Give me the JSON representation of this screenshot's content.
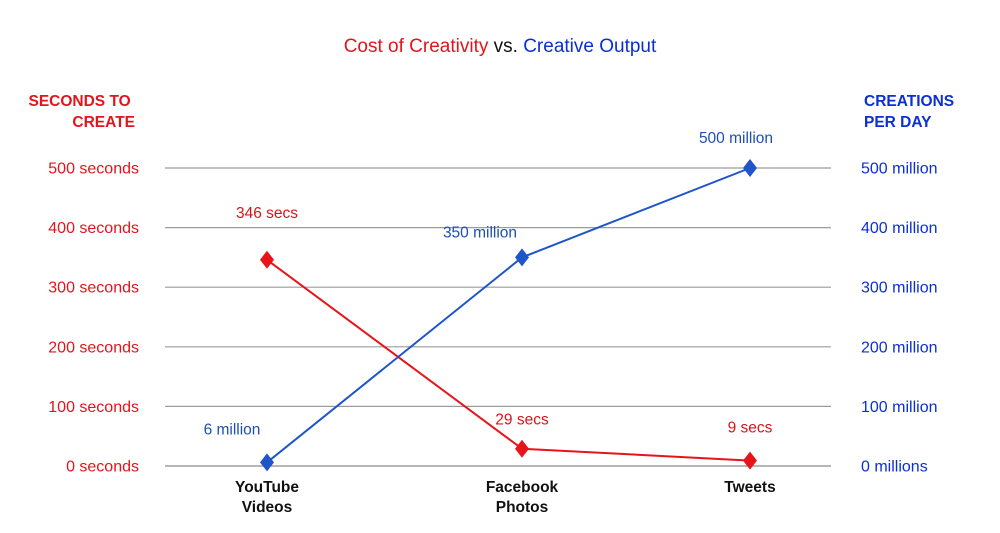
{
  "chart_data": {
    "type": "line",
    "title_parts": [
      {
        "text": "Cost of Creativity",
        "color": "#e3141b"
      },
      {
        "text": " vs. ",
        "color": "#111111"
      },
      {
        "text": "Creative Output",
        "color": "#0b2fd6"
      }
    ],
    "categories": [
      "YouTube Videos",
      "Facebook Photos",
      "Tweets"
    ],
    "category_lines": [
      [
        "YouTube",
        "Videos"
      ],
      [
        "Facebook",
        "Photos"
      ],
      [
        "Tweets"
      ]
    ],
    "left_axis": {
      "title_lines": [
        "SECONDS TO",
        "CREATE"
      ],
      "color": "#e3141b",
      "range": [
        0,
        500
      ],
      "ticks": [
        0,
        100,
        200,
        300,
        400,
        500
      ],
      "tick_labels": [
        "0 seconds",
        "100 seconds",
        "200 seconds",
        "300 seconds",
        "400 seconds",
        "500 seconds"
      ]
    },
    "right_axis": {
      "title_lines": [
        "CREATIONS",
        "PER DAY"
      ],
      "color": "#0b2fd6",
      "range": [
        0,
        500
      ],
      "ticks": [
        0,
        100,
        200,
        300,
        400,
        500
      ],
      "tick_labels": [
        "0 millions",
        "100 million",
        "200 million",
        "300 million",
        "400 million",
        "500 million"
      ]
    },
    "grid": true,
    "series": [
      {
        "axis": "left",
        "color": "#e8141b",
        "label_color": "#d8141b",
        "values": [
          346,
          29,
          9
        ],
        "labels": [
          "346 secs",
          "29 secs",
          "9 secs"
        ]
      },
      {
        "axis": "right",
        "color": "#1f55c8",
        "label_color": "#1d4fb4",
        "values": [
          6,
          350,
          500
        ],
        "labels": [
          "6 million",
          "350 million",
          "500 million"
        ]
      }
    ]
  }
}
